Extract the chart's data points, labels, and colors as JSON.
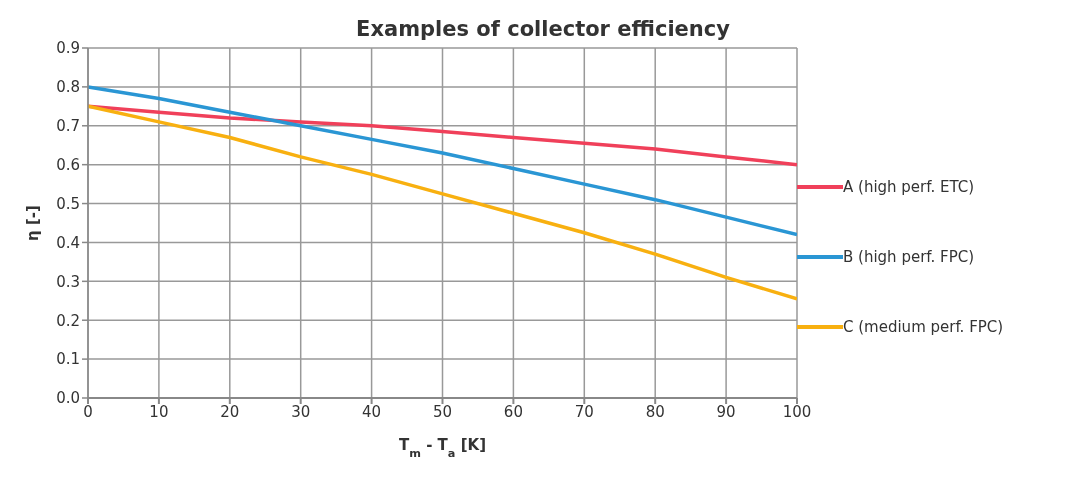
{
  "chart_data": {
    "type": "line",
    "title": "Examples of collector efficiency",
    "xlabel": "T$_{m}$ - T$_{a}$ [K]",
    "ylabel": "η [-]",
    "x": [
      0,
      10,
      20,
      30,
      40,
      50,
      60,
      70,
      80,
      90,
      100
    ],
    "series": [
      {
        "name": "A (high perf. ETC)",
        "color": "#f0405a",
        "values": [
          0.75,
          0.735,
          0.72,
          0.71,
          0.7,
          0.685,
          0.67,
          0.655,
          0.64,
          0.62,
          0.6
        ]
      },
      {
        "name": "B (high perf. FPC)",
        "color": "#2a96d4",
        "values": [
          0.8,
          0.77,
          0.735,
          0.7,
          0.665,
          0.63,
          0.59,
          0.55,
          0.51,
          0.465,
          0.42
        ]
      },
      {
        "name": "C (medium perf. FPC)",
        "color": "#f8b010",
        "values": [
          0.75,
          0.71,
          0.67,
          0.62,
          0.575,
          0.525,
          0.475,
          0.425,
          0.37,
          0.31,
          0.255
        ]
      }
    ],
    "xlim": [
      0,
      100
    ],
    "xticks": [
      0,
      10,
      20,
      30,
      40,
      50,
      60,
      70,
      80,
      90,
      100
    ],
    "ylim": [
      0,
      0.9
    ],
    "yticks": [
      {
        "value": 0,
        "label": "0.0"
      },
      {
        "value": 0.1,
        "label": "0.1"
      },
      {
        "value": 0.2,
        "label": "0.2"
      },
      {
        "value": 0.3,
        "label": "0.3"
      },
      {
        "value": 0.4,
        "label": "0.4"
      },
      {
        "value": 0.5,
        "label": "0.5"
      },
      {
        "value": 0.6,
        "label": "0.6"
      },
      {
        "value": 0.7,
        "label": "0.7"
      },
      {
        "value": 0.8,
        "label": "0.8"
      },
      {
        "value": 0.9,
        "label": "0.9"
      }
    ],
    "grid": true,
    "legend": "right",
    "marker": "none",
    "line_style": "solid"
  }
}
